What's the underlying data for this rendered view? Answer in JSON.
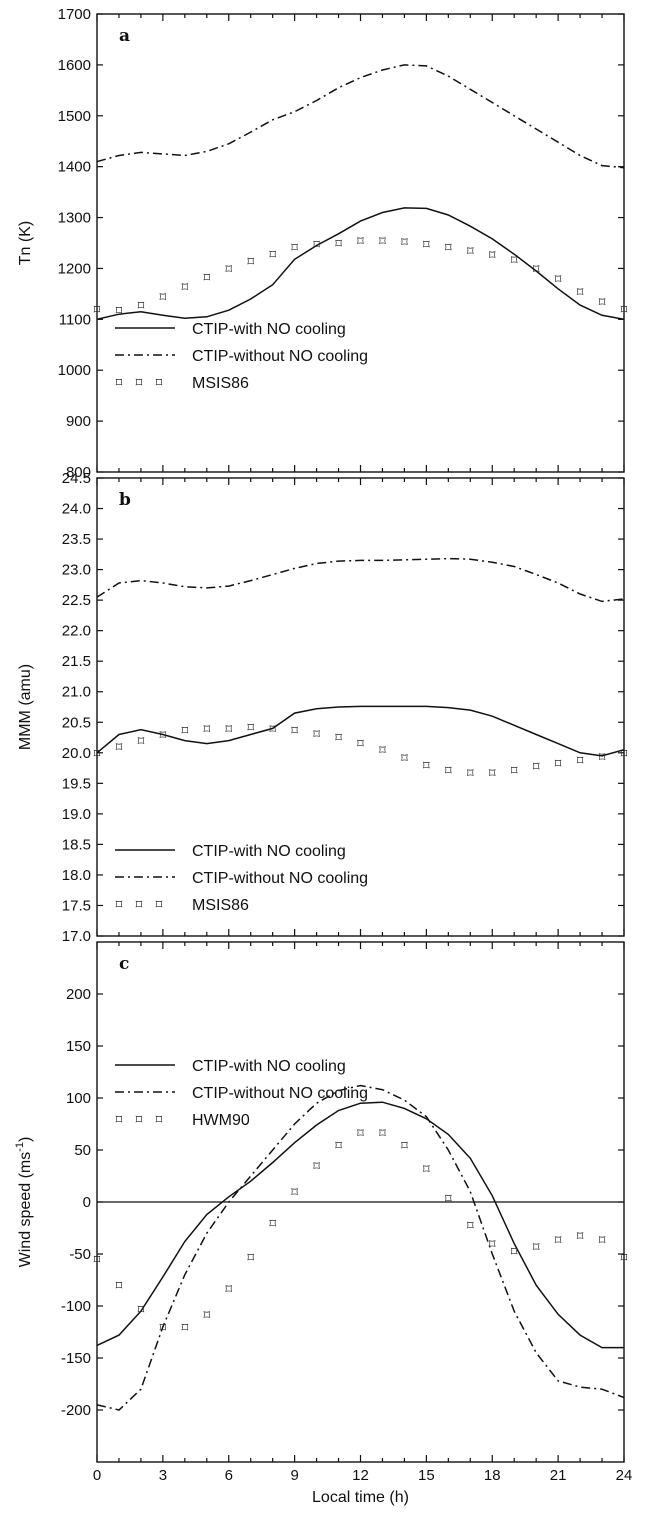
{
  "chart_data": [
    {
      "type": "line",
      "panel_label": "a",
      "ylabel": "Tn (K)",
      "xlabel": "",
      "xlim": [
        0,
        24
      ],
      "ylim": [
        800,
        1700
      ],
      "yticks": [
        "800",
        "900",
        "1000",
        "1100",
        "1200",
        "1300",
        "1400",
        "1500",
        "1600",
        "1700"
      ],
      "xticks": [],
      "legend": [
        {
          "label": "CTIP-with NO cooling",
          "style": "solid"
        },
        {
          "label": "CTIP-without NO cooling",
          "style": "dashdot"
        },
        {
          "label": "MSIS86",
          "style": "markers"
        }
      ],
      "series": [
        {
          "name": "CTIP-with NO cooling",
          "style": "solid",
          "x": [
            0,
            1,
            2,
            3,
            4,
            5,
            6,
            7,
            8,
            9,
            10,
            11,
            12,
            13,
            14,
            15,
            16,
            17,
            18,
            19,
            20,
            21,
            22,
            23,
            24
          ],
          "y": [
            1100,
            1110,
            1115,
            1108,
            1102,
            1105,
            1118,
            1140,
            1168,
            1218,
            1245,
            1268,
            1293,
            1310,
            1319,
            1318,
            1305,
            1283,
            1258,
            1228,
            1195,
            1160,
            1128,
            1108,
            1100
          ]
        },
        {
          "name": "CTIP-without NO cooling",
          "style": "dashdot",
          "x": [
            0,
            1,
            2,
            3,
            4,
            5,
            6,
            7,
            8,
            9,
            10,
            11,
            12,
            13,
            14,
            15,
            16,
            17,
            18,
            19,
            20,
            21,
            22,
            23,
            24
          ],
          "y": [
            1410,
            1422,
            1428,
            1425,
            1422,
            1430,
            1445,
            1468,
            1492,
            1508,
            1530,
            1555,
            1575,
            1590,
            1600,
            1598,
            1578,
            1552,
            1526,
            1500,
            1474,
            1448,
            1422,
            1402,
            1398
          ]
        },
        {
          "name": "MSIS86",
          "style": "markers",
          "x": [
            0,
            1,
            2,
            3,
            4,
            5,
            6,
            7,
            8,
            9,
            10,
            11,
            12,
            13,
            14,
            15,
            16,
            17,
            18,
            19,
            20,
            21,
            22,
            23,
            24
          ],
          "y": [
            1120,
            1118,
            1128,
            1145,
            1165,
            1183,
            1200,
            1215,
            1228,
            1242,
            1248,
            1250,
            1255,
            1255,
            1253,
            1248,
            1242,
            1235,
            1227,
            1218,
            1200,
            1180,
            1155,
            1135,
            1120
          ]
        }
      ]
    },
    {
      "type": "line",
      "panel_label": "b",
      "ylabel": "MMM (amu)",
      "xlabel": "",
      "xlim": [
        0,
        24
      ],
      "ylim": [
        17.0,
        24.5
      ],
      "yticks": [
        "17.0",
        "17.5",
        "18.0",
        "18.5",
        "19.0",
        "19.5",
        "20.0",
        "20.5",
        "21.0",
        "21.5",
        "22.0",
        "22.5",
        "23.0",
        "23.5",
        "24.0",
        "24.5"
      ],
      "xticks": [],
      "legend": [
        {
          "label": "CTIP-with NO cooling",
          "style": "solid"
        },
        {
          "label": "CTIP-without NO cooling",
          "style": "dashdot"
        },
        {
          "label": "MSIS86",
          "style": "markers"
        }
      ],
      "series": [
        {
          "name": "CTIP-with NO cooling",
          "style": "solid",
          "x": [
            0,
            1,
            2,
            3,
            4,
            5,
            6,
            7,
            8,
            9,
            10,
            11,
            12,
            13,
            14,
            15,
            16,
            17,
            18,
            19,
            20,
            21,
            22,
            23,
            24
          ],
          "y": [
            20.0,
            20.3,
            20.38,
            20.3,
            20.2,
            20.15,
            20.2,
            20.3,
            20.4,
            20.65,
            20.72,
            20.75,
            20.76,
            20.76,
            20.76,
            20.76,
            20.74,
            20.7,
            20.6,
            20.45,
            20.3,
            20.15,
            20.0,
            19.95,
            20.05
          ]
        },
        {
          "name": "CTIP-without NO cooling",
          "style": "dashdot",
          "x": [
            0,
            1,
            2,
            3,
            4,
            5,
            6,
            7,
            8,
            9,
            10,
            11,
            12,
            13,
            14,
            15,
            16,
            17,
            18,
            19,
            20,
            21,
            22,
            23,
            24
          ],
          "y": [
            22.55,
            22.78,
            22.82,
            22.78,
            22.72,
            22.7,
            22.73,
            22.82,
            22.92,
            23.02,
            23.1,
            23.14,
            23.15,
            23.15,
            23.16,
            23.17,
            23.18,
            23.17,
            23.12,
            23.05,
            22.92,
            22.78,
            22.6,
            22.48,
            22.52
          ]
        },
        {
          "name": "MSIS86",
          "style": "markers",
          "x": [
            0,
            1,
            2,
            3,
            4,
            5,
            6,
            7,
            8,
            9,
            10,
            11,
            12,
            13,
            14,
            15,
            16,
            17,
            18,
            19,
            20,
            21,
            22,
            23,
            24
          ],
          "y": [
            20.0,
            20.1,
            20.2,
            20.3,
            20.37,
            20.4,
            20.4,
            20.42,
            20.4,
            20.37,
            20.32,
            20.26,
            20.16,
            20.05,
            19.92,
            19.8,
            19.72,
            19.68,
            19.68,
            19.72,
            19.78,
            19.83,
            19.88,
            19.94,
            20.0
          ]
        }
      ]
    },
    {
      "type": "line",
      "panel_label": "c",
      "ylabel": "Wind speed (ms",
      "ylabel_sup": "-1",
      "ylabel_close": ")",
      "xlabel": "Local time (h)",
      "xlim": [
        0,
        24
      ],
      "ylim": [
        -250,
        250
      ],
      "yticks": [
        "-200",
        "-150",
        "-100",
        "-50",
        "0",
        "50",
        "100",
        "150",
        "200"
      ],
      "xticks": [
        "0",
        "3",
        "6",
        "9",
        "12",
        "15",
        "18",
        "21",
        "24"
      ],
      "legend": [
        {
          "label": "CTIP-with NO cooling",
          "style": "solid"
        },
        {
          "label": "CTIP-without NO cooling",
          "style": "dashdot"
        },
        {
          "label": "HWM90",
          "style": "markers"
        }
      ],
      "series": [
        {
          "name": "CTIP-with NO cooling",
          "style": "solid",
          "x": [
            0,
            1,
            2,
            3,
            4,
            5,
            6,
            7,
            8,
            9,
            10,
            11,
            12,
            13,
            14,
            15,
            16,
            17,
            18,
            19,
            20,
            21,
            22,
            23,
            24
          ],
          "y": [
            -138,
            -128,
            -105,
            -72,
            -38,
            -12,
            5,
            20,
            38,
            57,
            74,
            88,
            95,
            96,
            90,
            80,
            65,
            42,
            6,
            -40,
            -80,
            -108,
            -128,
            -140,
            -140
          ]
        },
        {
          "name": "CTIP-without NO cooling",
          "style": "dashdot",
          "x": [
            0,
            1,
            2,
            3,
            4,
            5,
            6,
            7,
            8,
            9,
            10,
            11,
            12,
            13,
            14,
            15,
            16,
            17,
            18,
            19,
            20,
            21,
            22,
            23,
            24
          ],
          "y": [
            -195,
            -200,
            -180,
            -120,
            -70,
            -30,
            0,
            25,
            50,
            75,
            95,
            107,
            112,
            108,
            98,
            82,
            50,
            10,
            -50,
            -105,
            -145,
            -172,
            -178,
            -180,
            -188
          ]
        },
        {
          "name": "HWM90",
          "style": "markers",
          "x": [
            0,
            1,
            2,
            3,
            4,
            5,
            6,
            7,
            8,
            9,
            10,
            11,
            12,
            13,
            14,
            15,
            16,
            17,
            18,
            19,
            20,
            21,
            22,
            23,
            24
          ],
          "y": [
            -55,
            -80,
            -103,
            -120,
            -120,
            -108,
            -83,
            -53,
            -20,
            10,
            35,
            55,
            67,
            67,
            55,
            32,
            4,
            -22,
            -40,
            -47,
            -43,
            -36,
            -32,
            -36,
            -53
          ]
        }
      ]
    }
  ]
}
